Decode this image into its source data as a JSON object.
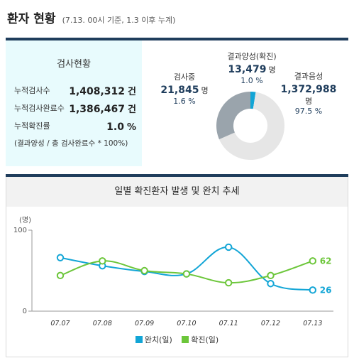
{
  "header": {
    "title": "환자 현황",
    "subtitle": "(7.13. 00시 기준, 1.3 이후 누계)"
  },
  "stats": {
    "title": "검사현황",
    "rows": [
      {
        "label": "누적검사수",
        "value": "1,408,312",
        "unit": "건"
      },
      {
        "label": "누적검사완료수",
        "value": "1,386,467",
        "unit": "건"
      },
      {
        "label": "누적확진률",
        "value": "1.0",
        "unit": "%"
      }
    ],
    "note": "(결과양성 / 총 검사완료수 * 100%)"
  },
  "donut": {
    "segments": [
      {
        "name": "결과양성(확진)",
        "value": "13,479",
        "unit": "명",
        "percent": "1.0 %",
        "fraction": 0.01,
        "color": "#12a5d6"
      },
      {
        "name": "결과음성",
        "value": "1,372,988",
        "unit": "명",
        "percent": "97.5 %",
        "fraction": 0.975,
        "color": "#e6e6e6"
      },
      {
        "name": "검사중",
        "value": "21,845",
        "unit": "명",
        "percent": "1.6 %",
        "fraction": 0.016,
        "color": "#9aa4ac"
      }
    ]
  },
  "trend": {
    "title": "일별 확진환자 발생 및 완치 추세"
  },
  "chart_data": {
    "type": "line",
    "title": "일별 확진환자 발생 및 완치 추세",
    "ylabel": "(명)",
    "yticks": [
      "100",
      "0"
    ],
    "ylim": [
      0,
      100
    ],
    "categories": [
      "07.07",
      "07.08",
      "07.09",
      "07.10",
      "07.11",
      "07.12",
      "07.13"
    ],
    "series": [
      {
        "name": "완치(일)",
        "color": "#12a5d6",
        "values": [
          66,
          56,
          49,
          46,
          79,
          34,
          26
        ]
      },
      {
        "name": "확진(일)",
        "color": "#6cc63a",
        "values": [
          44,
          62,
          50,
          46,
          35,
          44,
          62
        ]
      }
    ],
    "end_labels": [
      "26",
      "62"
    ],
    "legend": "bottom"
  }
}
